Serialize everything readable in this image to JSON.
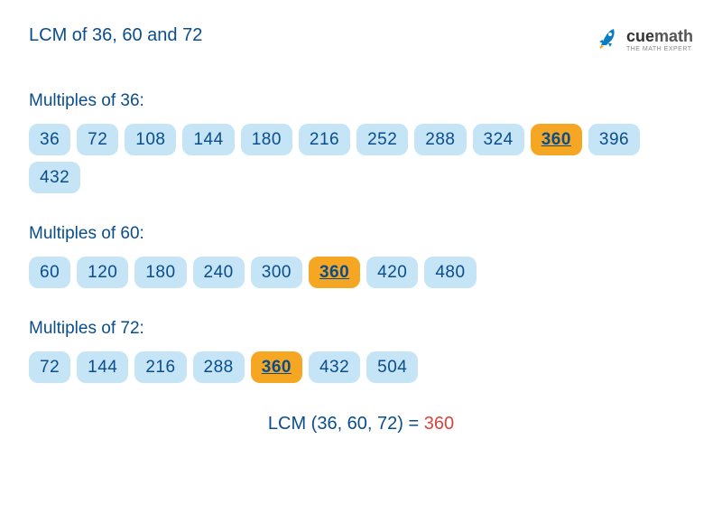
{
  "title": "LCM of 36, 60 and 72",
  "logo": {
    "brand_cue": "cue",
    "brand_math": "math",
    "tagline": "THE MATH EXPERT",
    "rocket_color": "#0a7cc4",
    "flame_color": "#f5a623"
  },
  "colors": {
    "text_primary": "#0a4d8c",
    "pill_bg": "#c5e4f5",
    "pill_highlight_bg": "#f5a623",
    "result_value": "#d9453a",
    "background": "#ffffff"
  },
  "typography": {
    "title_size": 20,
    "label_size": 19,
    "pill_size": 19,
    "result_size": 20
  },
  "sections": [
    {
      "label": "Multiples of 36:",
      "multiples": [
        {
          "v": "36",
          "hl": false
        },
        {
          "v": "72",
          "hl": false
        },
        {
          "v": "108",
          "hl": false
        },
        {
          "v": "144",
          "hl": false
        },
        {
          "v": "180",
          "hl": false
        },
        {
          "v": "216",
          "hl": false
        },
        {
          "v": "252",
          "hl": false
        },
        {
          "v": "288",
          "hl": false
        },
        {
          "v": "324",
          "hl": false
        },
        {
          "v": "360",
          "hl": true
        },
        {
          "v": "396",
          "hl": false
        },
        {
          "v": "432",
          "hl": false
        }
      ]
    },
    {
      "label": "Multiples of 60:",
      "multiples": [
        {
          "v": "60",
          "hl": false
        },
        {
          "v": "120",
          "hl": false
        },
        {
          "v": "180",
          "hl": false
        },
        {
          "v": "240",
          "hl": false
        },
        {
          "v": "300",
          "hl": false
        },
        {
          "v": "360",
          "hl": true
        },
        {
          "v": "420",
          "hl": false
        },
        {
          "v": "480",
          "hl": false
        }
      ]
    },
    {
      "label": "Multiples of 72:",
      "multiples": [
        {
          "v": "72",
          "hl": false
        },
        {
          "v": "144",
          "hl": false
        },
        {
          "v": "216",
          "hl": false
        },
        {
          "v": "288",
          "hl": false
        },
        {
          "v": "360",
          "hl": true
        },
        {
          "v": "432",
          "hl": false
        },
        {
          "v": "504",
          "hl": false
        }
      ]
    }
  ],
  "result": {
    "label": "LCM (36, 60, 72) = ",
    "value": "360"
  }
}
